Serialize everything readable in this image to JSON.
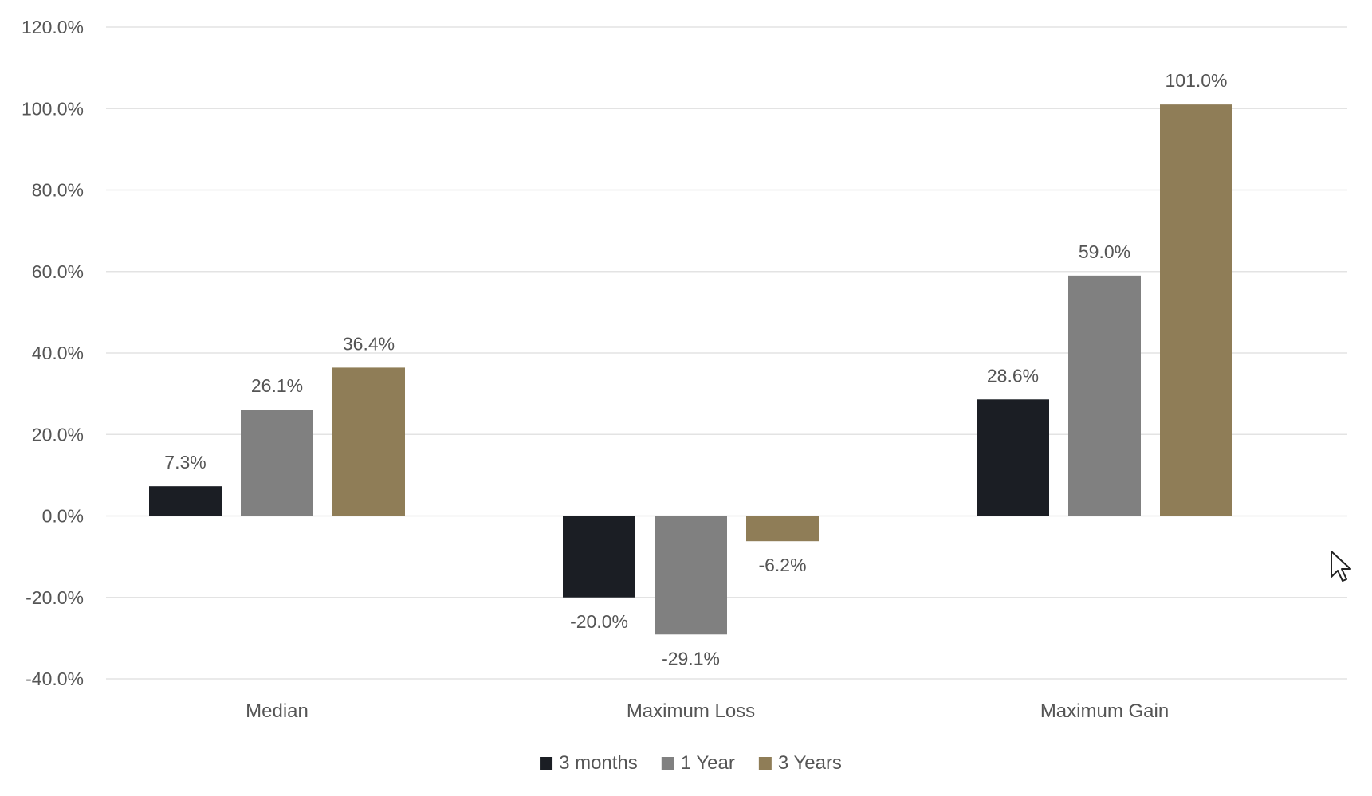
{
  "chart_data": {
    "type": "bar",
    "title": "",
    "xlabel": "",
    "ylabel": "",
    "ylim": [
      -40,
      120
    ],
    "ytick_step": 20,
    "ytick_format": "percent_1dp",
    "ytick_labels": [
      "120.0%",
      "100.0%",
      "80.0%",
      "60.0%",
      "40.0%",
      "20.0%",
      "0.0%",
      "-20.0%",
      "-40.0%"
    ],
    "grid": true,
    "legend_position": "bottom-center",
    "categories": [
      "Median",
      "Maximum Loss",
      "Maximum Gain"
    ],
    "series": [
      {
        "name": "3 months",
        "color": "#1b1e24",
        "values": [
          7.3,
          -20.0,
          28.6
        ],
        "labels": [
          "7.3%",
          "-20.0%",
          "28.6%"
        ]
      },
      {
        "name": "1 Year",
        "color": "#808080",
        "values": [
          26.1,
          -29.1,
          59.0
        ],
        "labels": [
          "26.1%",
          "-29.1%",
          "59.0%"
        ]
      },
      {
        "name": "3 Years",
        "color": "#8f7d57",
        "values": [
          36.4,
          -6.2,
          101.0
        ],
        "labels": [
          "36.4%",
          "-6.2%",
          "101.0%"
        ]
      }
    ]
  }
}
